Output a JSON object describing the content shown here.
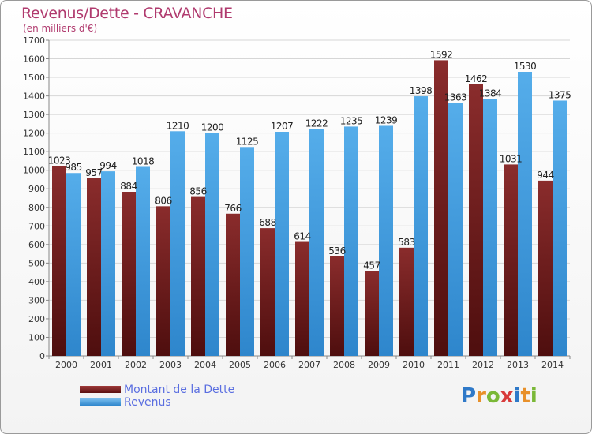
{
  "title": "Revenus/Dette - CRAVANCHE",
  "unit_label": "(en milliers d'€)",
  "legend": {
    "debt_label": "Montant de la Dette",
    "revenue_label": "Revenus"
  },
  "logo": {
    "text": "Proxiti",
    "letters": [
      "P",
      "r",
      "o",
      "x",
      "i",
      "t",
      "i"
    ],
    "colors": [
      "#2f79c8",
      "#e8902a",
      "#7ab837",
      "#d83a3a",
      "#2f79c8",
      "#e8902a",
      "#7ab837"
    ]
  },
  "colors": {
    "debt": "#7a2323",
    "revenue": "#4aa3e2",
    "axis_text": "#333333",
    "grid": "#d6d6d6"
  },
  "chart_data": {
    "type": "bar",
    "ylim": [
      0,
      1700
    ],
    "yticks": [
      0,
      100,
      200,
      300,
      400,
      500,
      600,
      700,
      800,
      900,
      1000,
      1100,
      1200,
      1300,
      1400,
      1500,
      1600,
      1700
    ],
    "categories": [
      "2000",
      "2001",
      "2002",
      "2003",
      "2004",
      "2005",
      "2006",
      "2007",
      "2008",
      "2009",
      "2010",
      "2011",
      "2012",
      "2013",
      "2014"
    ],
    "series": [
      {
        "name": "Montant de la Dette",
        "values": [
          1023,
          957,
          884,
          806,
          856,
          766,
          688,
          614,
          536,
          457,
          583,
          1592,
          1462,
          1031,
          944
        ]
      },
      {
        "name": "Revenus",
        "values": [
          985,
          994,
          1018,
          1210,
          1200,
          1125,
          1207,
          1222,
          1235,
          1239,
          1398,
          1363,
          1384,
          1530,
          1375
        ]
      }
    ],
    "grid": true,
    "legend_position": "bottom-left"
  }
}
